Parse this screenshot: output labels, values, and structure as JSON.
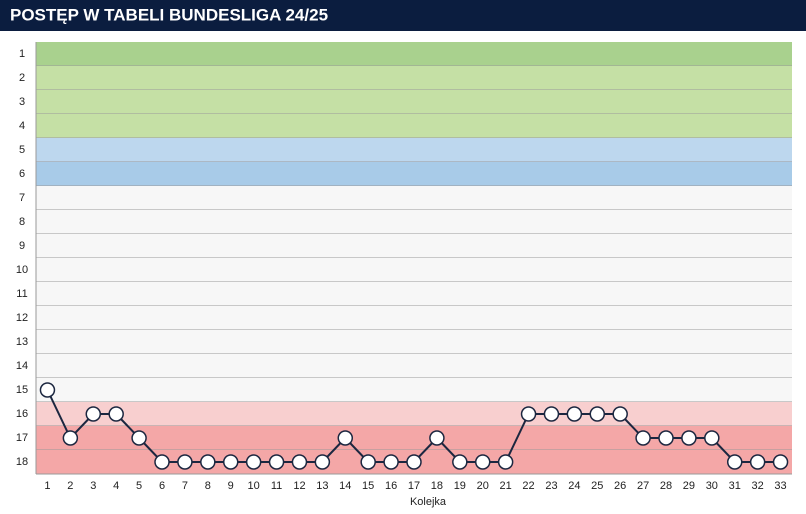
{
  "chart_data": {
    "type": "line",
    "title": "POSTĘP W TABELI BUNDESLIGA 24/25",
    "xlabel": "Kolejka",
    "x": [
      1,
      2,
      3,
      4,
      5,
      6,
      7,
      8,
      9,
      10,
      11,
      12,
      13,
      14,
      15,
      16,
      17,
      18,
      19,
      20,
      21,
      22,
      23,
      24,
      25,
      26,
      27,
      28,
      29,
      30,
      31,
      32,
      33
    ],
    "xlim": [
      0.5,
      33.5
    ],
    "xticks": [
      1,
      2,
      3,
      4,
      5,
      6,
      7,
      8,
      9,
      10,
      11,
      12,
      13,
      14,
      15,
      16,
      17,
      18,
      19,
      20,
      21,
      22,
      23,
      24,
      25,
      26,
      27,
      28,
      29,
      30,
      31,
      32,
      33
    ],
    "ylim": [
      0.5,
      18.5
    ],
    "y_inverted": true,
    "yticks": [
      1,
      2,
      3,
      4,
      5,
      6,
      7,
      8,
      9,
      10,
      11,
      12,
      13,
      14,
      15,
      16,
      17,
      18
    ],
    "row_colors": [
      "#a9d18e",
      "#c5e0a5",
      "#c5e0a5",
      "#c5e0a5",
      "#bdd7ee",
      "#a8cbe8",
      "#f7f7f7",
      "#f7f7f7",
      "#f7f7f7",
      "#f7f7f7",
      "#f7f7f7",
      "#f7f7f7",
      "#f7f7f7",
      "#f7f7f7",
      "#f7f7f7",
      "#f8cfcf",
      "#f4a7a7",
      "#f4a7a7"
    ],
    "series": [
      {
        "color": "#1c2740",
        "values": [
          15,
          17,
          16,
          16,
          17,
          18,
          18,
          18,
          18,
          18,
          18,
          18,
          18,
          17,
          18,
          18,
          18,
          17,
          18,
          18,
          18,
          16,
          16,
          16,
          16,
          16,
          17,
          17,
          17,
          17,
          18,
          18,
          18
        ]
      }
    ]
  }
}
